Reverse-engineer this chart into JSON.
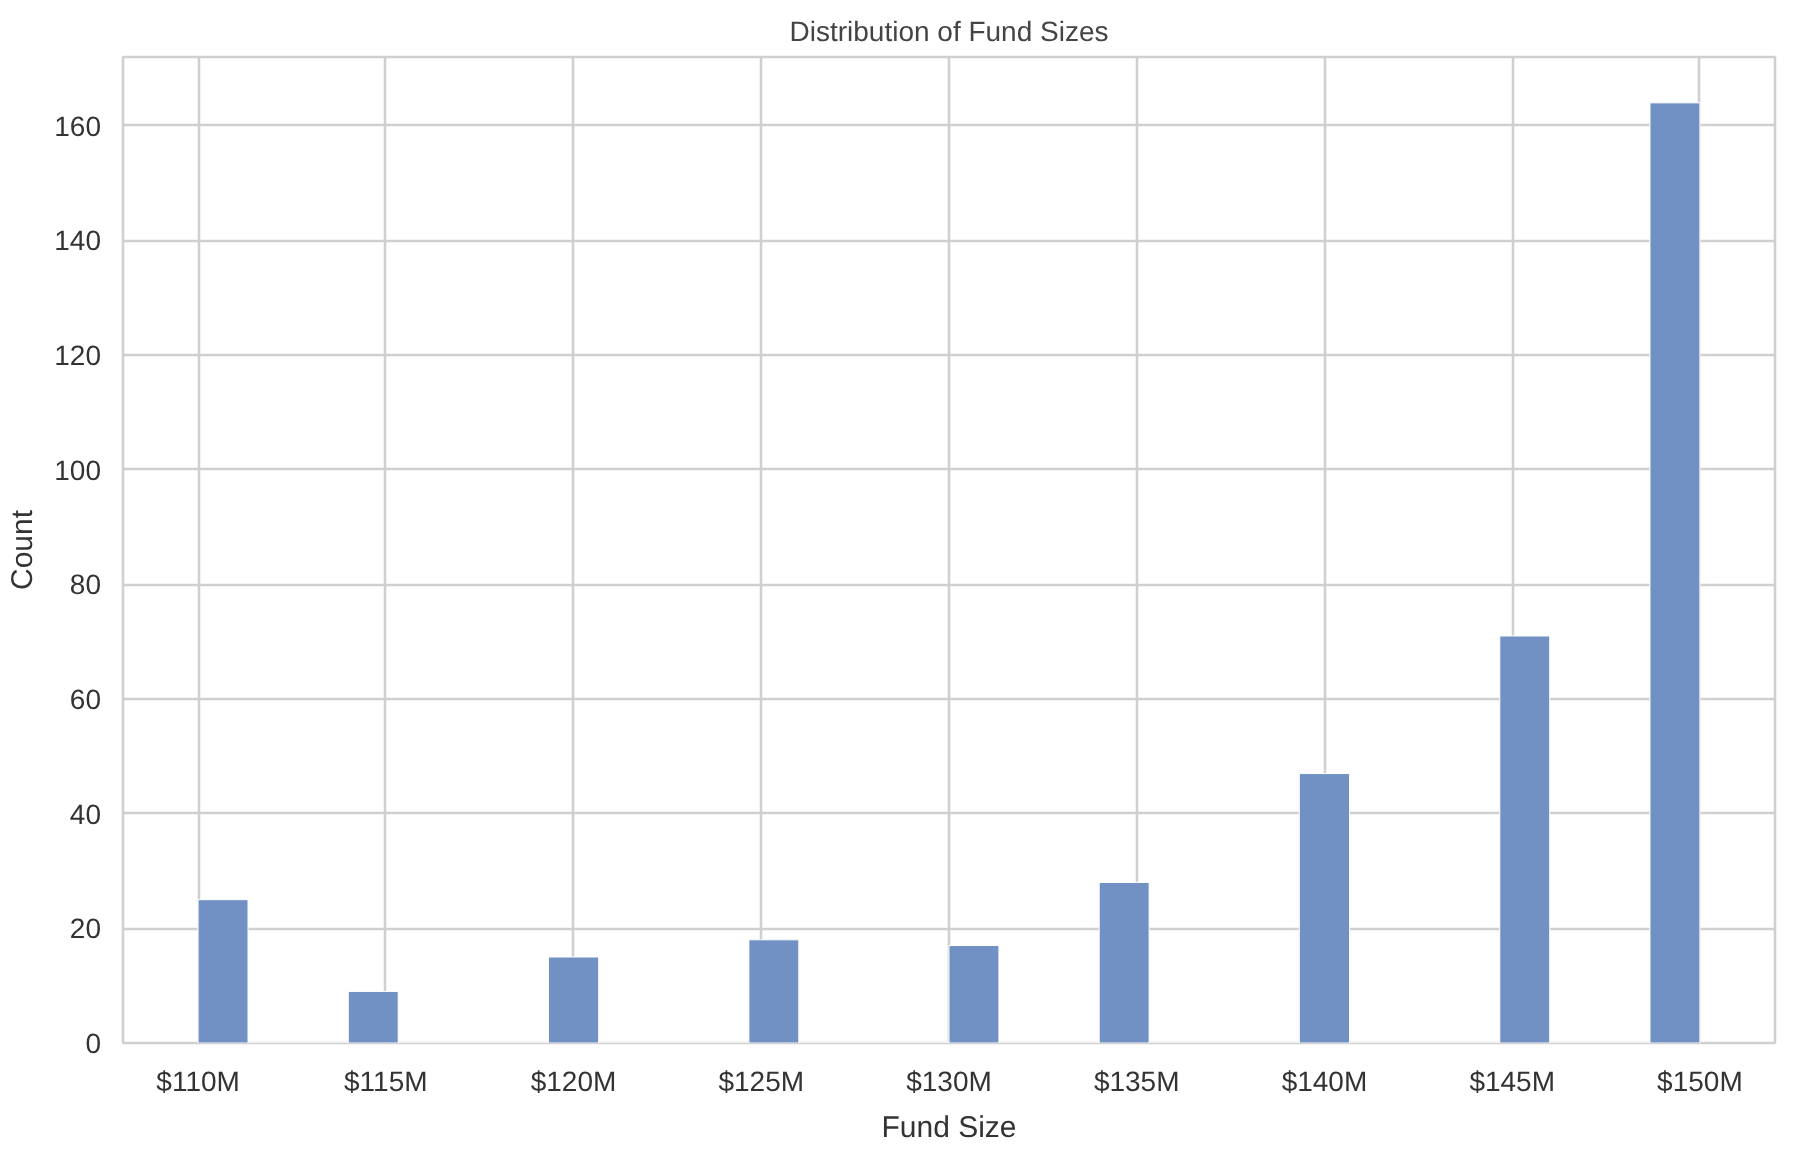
{
  "chart_data": {
    "type": "histogram",
    "title": "Distribution of Fund Sizes",
    "xlabel": "Fund Size",
    "ylabel": "Count",
    "bins": [
      110,
      111.33,
      112.67,
      114,
      115.33,
      116.67,
      118,
      119.33,
      120.67,
      122,
      123.33,
      124.67,
      126,
      127.33,
      128.67,
      130,
      131.33,
      132.67,
      134,
      135.33,
      136.67,
      138,
      139.33,
      140.67,
      142,
      143.33,
      144.67,
      146,
      147.33,
      148.67,
      150
    ],
    "values": [
      25,
      0,
      0,
      9,
      0,
      0,
      0,
      15,
      0,
      0,
      0,
      18,
      0,
      0,
      0,
      17,
      0,
      0,
      28,
      0,
      0,
      0,
      47,
      0,
      0,
      0,
      71,
      0,
      0,
      164
    ],
    "color": "#7190c4",
    "xlim": [
      108,
      152
    ],
    "ylim": [
      0,
      172
    ],
    "xticks": [
      {
        "value": 110,
        "label": "$110M"
      },
      {
        "value": 115,
        "label": "$115M"
      },
      {
        "value": 120,
        "label": "$120M"
      },
      {
        "value": 125,
        "label": "$125M"
      },
      {
        "value": 130,
        "label": "$130M"
      },
      {
        "value": 135,
        "label": "$135M"
      },
      {
        "value": 140,
        "label": "$140M"
      },
      {
        "value": 145,
        "label": "$145M"
      },
      {
        "value": 150,
        "label": "$150M"
      }
    ],
    "yticks": [
      0,
      20,
      40,
      60,
      80,
      100,
      120,
      140,
      160
    ],
    "grid": true
  }
}
